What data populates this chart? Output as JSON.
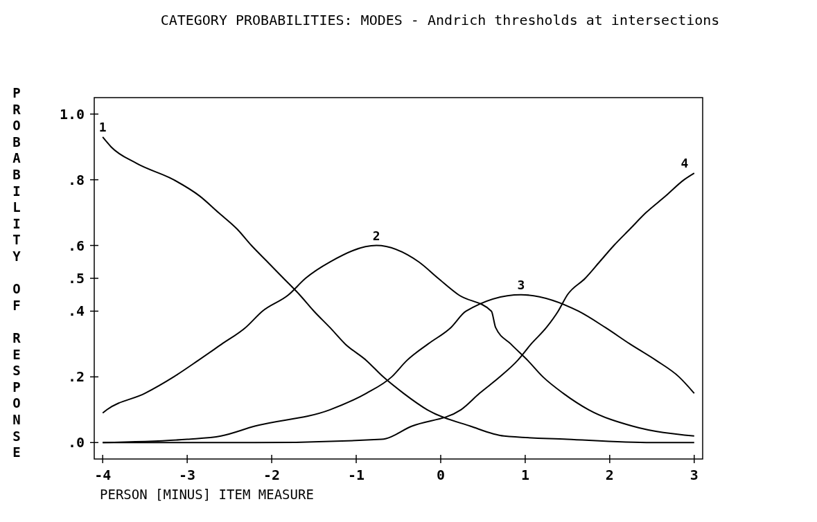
{
  "chart_data": {
    "type": "line",
    "title": "CATEGORY PROBABILITIES: MODES - Andrich thresholds at intersections",
    "xlabel": "PERSON [MINUS] ITEM MEASURE",
    "ylabel": "PROBABILITY OF RESPONSE",
    "xlim": [
      -4.1,
      3.1
    ],
    "xticks": [
      -4,
      -3,
      -2,
      -1,
      0,
      1,
      2,
      3
    ],
    "ylim": [
      -0.05,
      1.05
    ],
    "yticks": [
      {
        "value": 1,
        "label": "1.0"
      },
      {
        "value": 0.8,
        "label": ".8"
      },
      {
        "value": 0.6,
        "label": ".6"
      },
      {
        "value": 0.5,
        "label": ".5"
      },
      {
        "value": 0.4,
        "label": ".4"
      },
      {
        "value": 0.2,
        "label": ".2"
      },
      {
        "value": 0,
        "label": ".0"
      }
    ],
    "grid": false,
    "marker": "none",
    "line_style": "solid",
    "series": [
      {
        "name": "1",
        "color": "#000000",
        "x": [
          -4,
          -3.9,
          -3.6,
          -3.16,
          -2.85,
          -2.63,
          -2.41,
          -2.24,
          -2.05,
          -1.86,
          -1.67,
          -1.5,
          -1.31,
          -1.13,
          -0.88,
          -0.68,
          -0.44,
          -0.16,
          0.35,
          0.75,
          1.5,
          2.5,
          3
        ],
        "values": [
          0.93,
          0.9,
          0.85,
          0.8,
          0.75,
          0.7,
          0.65,
          0.6,
          0.55,
          0.5,
          0.45,
          0.4,
          0.35,
          0.3,
          0.25,
          0.2,
          0.15,
          0.1,
          0.05,
          0.02,
          0.01,
          0,
          0
        ]
      },
      {
        "name": "2",
        "color": "#000000",
        "x": [
          -4,
          -3.95,
          -3.5,
          -3.16,
          -2.87,
          -2.59,
          -2.31,
          -2.11,
          -1.8,
          -1.6,
          -1.31,
          -0.76,
          -0.26,
          -0.03,
          0.21,
          0.6,
          0.65,
          0.83,
          1.03,
          1.21,
          1.45,
          1.75,
          2.27,
          3
        ],
        "values": [
          0.09,
          0.1,
          0.15,
          0.2,
          0.25,
          0.3,
          0.35,
          0.4,
          0.45,
          0.5,
          0.55,
          0.6,
          0.55,
          0.5,
          0.45,
          0.4,
          0.35,
          0.3,
          0.25,
          0.2,
          0.15,
          0.1,
          0.05,
          0.02
        ]
      },
      {
        "name": "3",
        "color": "#000000",
        "x": [
          -4,
          -3,
          -2.6,
          -2.2,
          -1.31,
          -0.88,
          -0.58,
          -0.4,
          -0.15,
          0.12,
          0.3,
          0.95,
          1.63,
          1.95,
          2.24,
          2.55,
          2.82,
          3
        ],
        "values": [
          0,
          0.01,
          0.02,
          0.05,
          0.1,
          0.15,
          0.2,
          0.25,
          0.3,
          0.35,
          0.4,
          0.45,
          0.4,
          0.35,
          0.3,
          0.25,
          0.2,
          0.15
        ]
      },
      {
        "name": "4",
        "color": "#000000",
        "x": [
          -4,
          -2.2,
          -0.7,
          -0.34,
          0.24,
          0.46,
          0.7,
          0.91,
          1.07,
          1.25,
          1.39,
          1.5,
          1.71,
          1.88,
          2.05,
          2.24,
          2.43,
          2.66,
          2.88,
          3
        ],
        "values": [
          0,
          0,
          0.01,
          0.05,
          0.1,
          0.15,
          0.2,
          0.25,
          0.3,
          0.35,
          0.4,
          0.45,
          0.5,
          0.55,
          0.6,
          0.65,
          0.7,
          0.75,
          0.8,
          0.82
        ]
      }
    ]
  }
}
